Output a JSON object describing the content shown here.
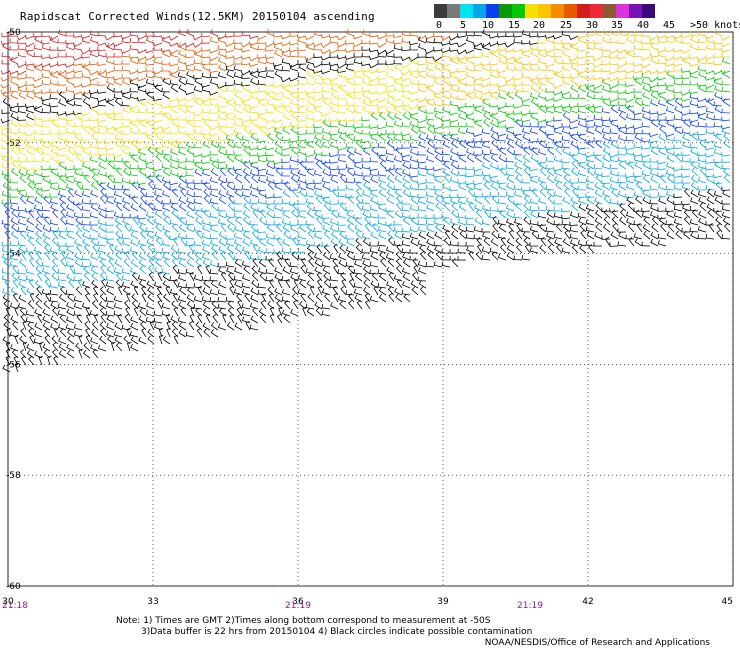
{
  "title": "Rapidscat Corrected Winds(12.5KM) 20150104 ascending",
  "legend": {
    "colors": [
      "#3c3c3c",
      "#7a7a7a",
      "#00e5f2",
      "#00a6e6",
      "#0a3ef0",
      "#0a9a0a",
      "#05c805",
      "#f5e100",
      "#ffc400",
      "#f58c00",
      "#e85a00",
      "#d21e1e",
      "#f0283c",
      "#8c5a32",
      "#dc32dc",
      "#7814b4",
      "#3c0a78"
    ],
    "labels": [
      "0",
      "5",
      "10",
      "15",
      "20",
      "25",
      "30",
      "35",
      "40",
      "45",
      ">50 knots"
    ]
  },
  "axes": {
    "x_ticks": [
      "30",
      "33",
      "36",
      "39",
      "42",
      "45"
    ],
    "y_ticks": [
      "-50",
      "-52",
      "-54",
      "-56",
      "-58",
      "-60"
    ],
    "time_labels": [
      "21:18",
      "21:19",
      "21:19"
    ]
  },
  "notes": [
    "Note: 1) Times are GMT 2)Times along bottom correspond to measurement at -50S",
    "3)Data buffer is 22 hrs from 20150104 4) Black circles indicate possible contamination"
  ],
  "credit": "NOAA/NESDIS/Office of Research and Applications",
  "map_data": {
    "lon_range": [
      30,
      45
    ],
    "lat_range": [
      -60,
      -50
    ],
    "bands": [
      {
        "lat": -50.5,
        "color": "#d21e1e"
      },
      {
        "lat": -51.0,
        "color": "#e85a00"
      },
      {
        "lat": -51.5,
        "color": "#000000"
      },
      {
        "lat": -52.3,
        "color": "#ffc400"
      },
      {
        "lat": -53.0,
        "color": "#05c805"
      },
      {
        "lat": -53.6,
        "color": "#0a3ef0"
      },
      {
        "lat": -54.6,
        "color": "#00a6e6"
      },
      {
        "lat": -55.8,
        "color": "#000000"
      }
    ]
  }
}
